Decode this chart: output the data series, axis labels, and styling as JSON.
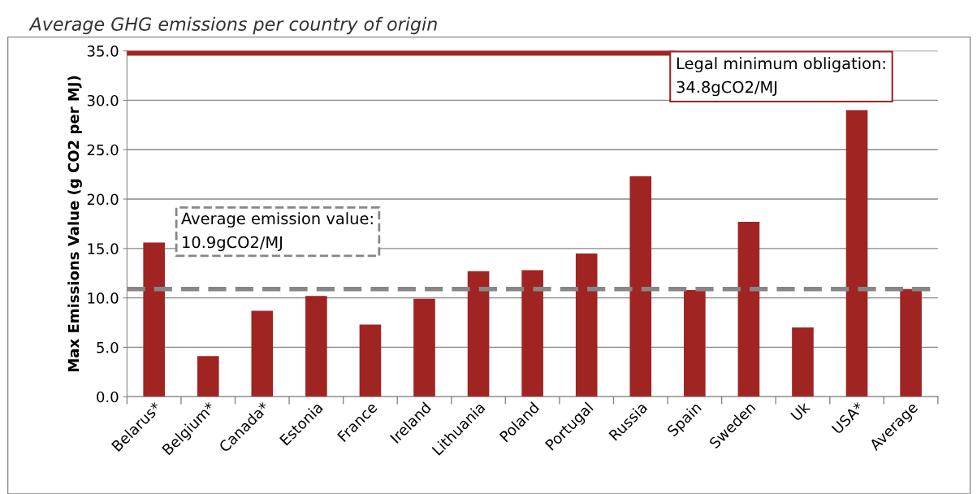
{
  "chart_data": {
    "type": "bar",
    "title": "Average GHG emissions per country of origin",
    "ylabel": "Max Emissions Value (g CO2 per MJ)",
    "categories": [
      "Belarus*",
      "Belgium*",
      "Canada*",
      "Estonia",
      "France",
      "Ireland",
      "Lithuania",
      "Poland",
      "Portugal",
      "Russia",
      "Spain",
      "Sweden",
      "Uk",
      "USA*",
      "Average"
    ],
    "values": [
      15.6,
      4.1,
      8.7,
      10.2,
      7.3,
      9.9,
      12.7,
      12.8,
      14.5,
      22.3,
      10.8,
      17.7,
      7.0,
      29.0,
      10.9
    ],
    "color": "#a02422",
    "ylim": [
      0,
      35
    ],
    "yticks": [
      {
        "value": 0,
        "label": "0.0"
      },
      {
        "value": 5,
        "label": "5.0"
      },
      {
        "value": 10,
        "label": "10.0"
      },
      {
        "value": 15,
        "label": "15.0"
      },
      {
        "value": 20,
        "label": "20.0"
      },
      {
        "value": 25,
        "label": "25.0"
      },
      {
        "value": 30,
        "label": "30.0"
      },
      {
        "value": 35,
        "label": "35.0"
      }
    ],
    "grid": "y",
    "ref_lines": [
      {
        "axis": "y",
        "value": 34.8,
        "label": "Legal minimum obligation:\n34.8gCO2/MJ",
        "color": "#a02422",
        "line_style": "solid"
      },
      {
        "axis": "y",
        "value": 10.9,
        "label": "Average emission value:\n10.9gCO2/MJ",
        "color": "#878787",
        "line_style": "dashed"
      }
    ]
  }
}
